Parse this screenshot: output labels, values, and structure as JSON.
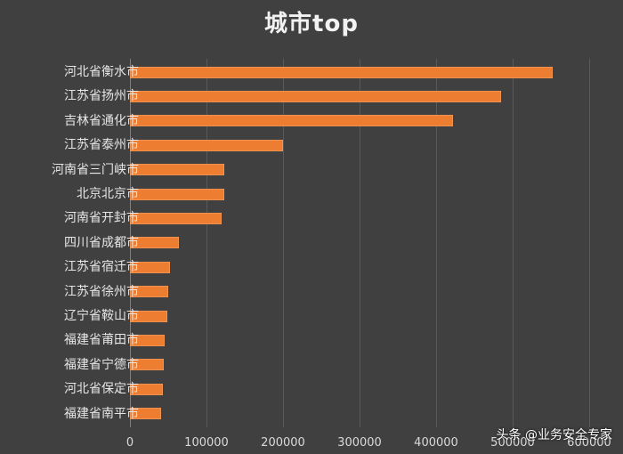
{
  "chart_data": {
    "type": "bar",
    "orientation": "horizontal",
    "title": "城市top",
    "xlabel": "",
    "ylabel": "",
    "xlim": [
      0,
      600000
    ],
    "x_ticks": [
      "0",
      "100000",
      "200000",
      "300000",
      "400000",
      "500000",
      "600000"
    ],
    "grid": true,
    "legend": "none",
    "bar_color": "#ed7d31",
    "background": "#404040",
    "categories": [
      "河北省衡水市",
      "江苏省扬州市",
      "吉林省通化市",
      "江苏省泰州市",
      "河南省三门峡市",
      "北京北京市",
      "河南省开封市",
      "四川省成都市",
      "江苏省宿迁市",
      "江苏省徐州市",
      "辽宁省鞍山市",
      "福建省莆田市",
      "福建省宁德市",
      "河北省保定市",
      "福建省南平市"
    ],
    "values": [
      552000,
      485000,
      422000,
      200000,
      123000,
      123000,
      120000,
      64000,
      52000,
      50000,
      49000,
      45000,
      44000,
      43000,
      41000
    ]
  },
  "watermark": "头条 @业务安全专家"
}
